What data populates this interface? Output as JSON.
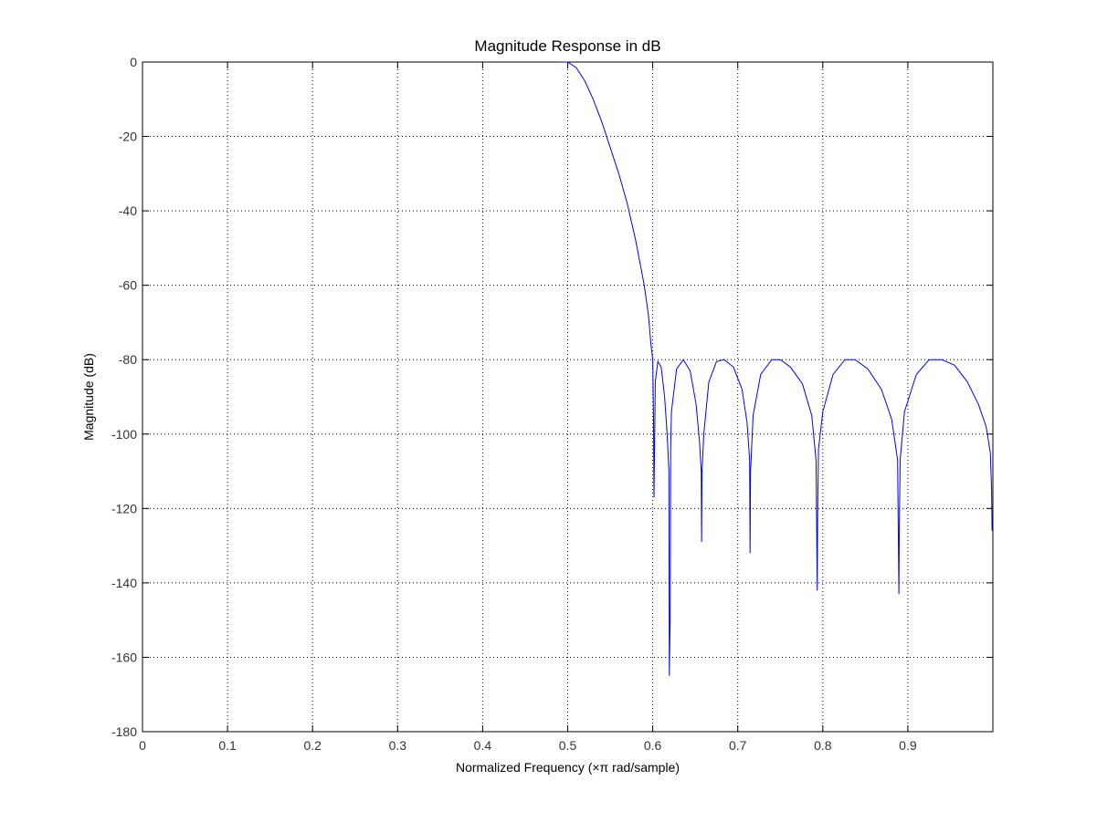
{
  "chart_data": {
    "type": "line",
    "title": "Magnitude Response in dB",
    "xlabel": "Normalized Frequency  (×π rad/sample)",
    "ylabel": "Magnitude (dB)",
    "xlim": [
      0,
      1
    ],
    "ylim": [
      -180,
      0
    ],
    "xticks": [
      0,
      0.1,
      0.2,
      0.3,
      0.4,
      0.5,
      0.6,
      0.7,
      0.8,
      0.9
    ],
    "xtick_labels": [
      "0",
      "0.1",
      "0.2",
      "0.3",
      "0.4",
      "0.5",
      "0.6",
      "0.7",
      "0.8",
      "0.9"
    ],
    "yticks": [
      0,
      -20,
      -40,
      -60,
      -80,
      -100,
      -120,
      -140,
      -160,
      -180
    ],
    "ytick_labels": [
      "0",
      "-20",
      "-40",
      "-60",
      "-80",
      "-100",
      "-120",
      "-140",
      "-160",
      "-180"
    ],
    "grid": true,
    "line_color": "#0000ff",
    "series": [
      {
        "x": [
          0.4935,
          0.5,
          0.51,
          0.52,
          0.53,
          0.54,
          0.55,
          0.56,
          0.57,
          0.58,
          0.59,
          0.595,
          0.598,
          0.6,
          0.601,
          0.6015,
          0.603,
          0.606,
          0.61,
          0.614,
          0.617,
          0.619,
          0.6195,
          0.6205,
          0.621,
          0.622,
          0.628,
          0.636,
          0.644,
          0.651,
          0.655,
          0.657,
          0.6575,
          0.658,
          0.66,
          0.666,
          0.675,
          0.684,
          0.695,
          0.705,
          0.711,
          0.714,
          0.7145,
          0.715,
          0.718,
          0.727,
          0.74,
          0.75,
          0.762,
          0.776,
          0.787,
          0.792,
          0.7935,
          0.794,
          0.795,
          0.8,
          0.812,
          0.826,
          0.838,
          0.853,
          0.869,
          0.881,
          0.888,
          0.8895,
          0.89,
          0.891,
          0.896,
          0.91,
          0.925,
          0.94,
          0.955,
          0.97,
          0.983,
          0.992,
          0.997,
          0.9985,
          0.999
        ]
      },
      {
        "y": [
          0,
          0,
          -1.5,
          -5,
          -10,
          -16,
          -23,
          -30,
          -38,
          -48,
          -60,
          -68,
          -76,
          -80,
          -96,
          -117,
          -86,
          -80.5,
          -82,
          -90,
          -100,
          -110,
          -165,
          -150,
          -104,
          -94,
          -82.5,
          -80,
          -83,
          -92,
          -102,
          -110,
          -129,
          -110,
          -100,
          -86,
          -80.5,
          -80,
          -82,
          -88,
          -97,
          -107,
          -132,
          -110,
          -95,
          -84,
          -80,
          -80,
          -82,
          -86.5,
          -95,
          -107,
          -142,
          -120,
          -104,
          -94,
          -84,
          -80,
          -80,
          -82.5,
          -88,
          -96,
          -107,
          -143,
          -124,
          -107,
          -94,
          -84,
          -80,
          -80,
          -81.5,
          -86,
          -92,
          -98,
          -105,
          -115,
          -126
        ]
      }
    ]
  }
}
